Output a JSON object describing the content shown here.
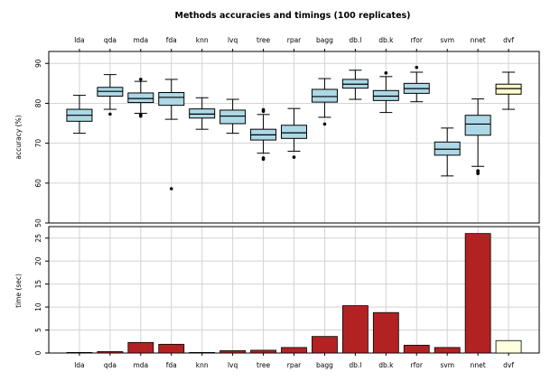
{
  "chart_data": {
    "type": "boxplot+bar",
    "title": "Methods accuracies and timings (100 replicates)",
    "categories": [
      "lda",
      "qda",
      "mda",
      "fda",
      "knn",
      "lvq",
      "tree",
      "rpar",
      "bagg",
      "db.l",
      "db.k",
      "rfor",
      "svm",
      "nnet",
      "dvf"
    ],
    "box_panel": {
      "ylabel": "accuracy (%)",
      "ylim": [
        50,
        93
      ],
      "yticks": [
        50,
        60,
        70,
        80,
        90
      ],
      "grid": true,
      "fill_default": "#add8e6",
      "fill_highlight": "#ffffcc",
      "boxes": [
        {
          "name": "lda",
          "whisker_low": 72.5,
          "q1": 75.5,
          "median": 77.0,
          "q3": 78.5,
          "whisker_high": 82.0,
          "outliers": []
        },
        {
          "name": "qda",
          "whisker_low": 78.5,
          "q1": 81.8,
          "median": 83.0,
          "q3": 84.0,
          "whisker_high": 87.2,
          "outliers": [
            77.3
          ]
        },
        {
          "name": "mda",
          "whisker_low": 77.5,
          "q1": 80.2,
          "median": 81.2,
          "q3": 82.6,
          "whisker_high": 85.5,
          "outliers": [
            76.8,
            77.2,
            86.0
          ]
        },
        {
          "name": "fda",
          "whisker_low": 76.0,
          "q1": 79.5,
          "median": 81.5,
          "q3": 82.7,
          "whisker_high": 86.0,
          "outliers": [
            58.6
          ]
        },
        {
          "name": "knn",
          "whisker_low": 73.5,
          "q1": 76.3,
          "median": 77.3,
          "q3": 78.6,
          "whisker_high": 81.4,
          "outliers": []
        },
        {
          "name": "lvq",
          "whisker_low": 72.5,
          "q1": 74.9,
          "median": 76.8,
          "q3": 78.3,
          "whisker_high": 81.0,
          "outliers": []
        },
        {
          "name": "tree",
          "whisker_low": 67.5,
          "q1": 70.8,
          "median": 72.1,
          "q3": 73.5,
          "whisker_high": 77.2,
          "outliers": [
            66.0,
            66.3,
            78.0,
            78.4
          ]
        },
        {
          "name": "rpar",
          "whisker_low": 68.0,
          "q1": 71.2,
          "median": 72.6,
          "q3": 74.5,
          "whisker_high": 78.7,
          "outliers": [
            66.5
          ]
        },
        {
          "name": "bagg",
          "whisker_low": 76.5,
          "q1": 80.3,
          "median": 81.7,
          "q3": 83.5,
          "whisker_high": 86.2,
          "outliers": [
            74.8
          ]
        },
        {
          "name": "db.l",
          "whisker_low": 81.0,
          "q1": 83.8,
          "median": 84.8,
          "q3": 86.0,
          "whisker_high": 88.3,
          "outliers": []
        },
        {
          "name": "db.k",
          "whisker_low": 77.7,
          "q1": 80.7,
          "median": 81.8,
          "q3": 83.2,
          "whisker_high": 86.7,
          "outliers": [
            87.6
          ]
        },
        {
          "name": "rfor",
          "whisker_low": 80.4,
          "q1": 82.5,
          "median": 83.7,
          "q3": 85.0,
          "whisker_high": 87.8,
          "outliers": [
            89.0
          ]
        },
        {
          "name": "svm",
          "whisker_low": 61.8,
          "q1": 67.0,
          "median": 68.5,
          "q3": 70.3,
          "whisker_high": 73.8,
          "outliers": []
        },
        {
          "name": "nnet",
          "whisker_low": 64.2,
          "q1": 72.0,
          "median": 74.8,
          "q3": 77.0,
          "whisker_high": 81.1,
          "outliers": [
            62.4,
            62.8,
            63.1
          ]
        },
        {
          "name": "dvf",
          "whisker_low": 78.5,
          "q1": 82.3,
          "median": 83.7,
          "q3": 84.8,
          "whisker_high": 87.8,
          "outliers": []
        }
      ]
    },
    "bar_panel": {
      "ylabel": "time (sec)",
      "ylim": [
        0,
        27.5
      ],
      "yticks": [
        0,
        5,
        10,
        15,
        20,
        25
      ],
      "grid": true,
      "fill_default": "#b22222",
      "fill_highlight": "#ffffdd",
      "values": [
        0.05,
        0.3,
        2.3,
        1.9,
        0.1,
        0.5,
        0.6,
        1.2,
        3.6,
        10.3,
        8.8,
        1.7,
        1.2,
        26.0,
        2.7
      ]
    },
    "highlight_category": "dvf"
  }
}
